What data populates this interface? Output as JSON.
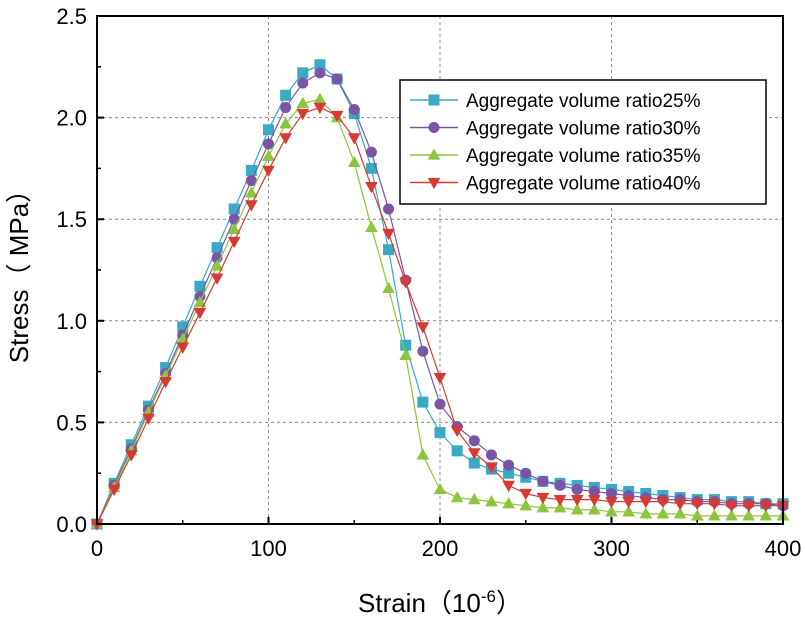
{
  "chart_data": {
    "type": "line",
    "xlabel": "Strain（",
    "xlabel_unit_base": "10",
    "xlabel_unit_exp": "-6",
    "xlabel_close": "）",
    "ylabel": "Stress（ MPa）",
    "xlim": [
      0,
      400
    ],
    "ylim": [
      0,
      2.5
    ],
    "x_ticks": [
      "0",
      "100",
      "200",
      "300",
      "400"
    ],
    "y_ticks": [
      "0.0",
      "0.5",
      "1.0",
      "1.5",
      "2.0",
      "2.5"
    ],
    "grid": true,
    "legend_position": "top-right",
    "x": [
      0,
      10,
      20,
      30,
      40,
      50,
      60,
      70,
      80,
      90,
      100,
      110,
      120,
      130,
      140,
      150,
      160,
      170,
      180,
      190,
      200,
      210,
      220,
      230,
      240,
      250,
      260,
      270,
      280,
      290,
      300,
      310,
      320,
      330,
      340,
      350,
      360,
      370,
      380,
      390,
      400
    ],
    "series": [
      {
        "name": "Aggregate volume ratio25%",
        "color": "#3aa9c6",
        "marker": "square",
        "values": [
          0,
          0.2,
          0.39,
          0.58,
          0.77,
          0.97,
          1.17,
          1.36,
          1.55,
          1.74,
          1.94,
          2.11,
          2.22,
          2.26,
          2.19,
          2.02,
          1.75,
          1.35,
          0.88,
          0.6,
          0.45,
          0.36,
          0.3,
          0.27,
          0.25,
          0.23,
          0.21,
          0.2,
          0.19,
          0.18,
          0.17,
          0.16,
          0.15,
          0.14,
          0.13,
          0.12,
          0.12,
          0.11,
          0.11,
          0.1,
          0.1
        ]
      },
      {
        "name": "Aggregate volume ratio30%",
        "color": "#7b55a5",
        "marker": "circle",
        "values": [
          0,
          0.19,
          0.37,
          0.56,
          0.74,
          0.93,
          1.12,
          1.31,
          1.5,
          1.69,
          1.87,
          2.05,
          2.17,
          2.22,
          2.19,
          2.04,
          1.83,
          1.55,
          1.2,
          0.85,
          0.59,
          0.48,
          0.41,
          0.34,
          0.29,
          0.25,
          0.21,
          0.19,
          0.17,
          0.16,
          0.15,
          0.14,
          0.13,
          0.12,
          0.12,
          0.11,
          0.11,
          0.1,
          0.1,
          0.1,
          0.09
        ]
      },
      {
        "name": "Aggregate volume ratio35%",
        "color": "#8cc63e",
        "marker": "triangle-up",
        "values": [
          0,
          0.18,
          0.36,
          0.55,
          0.73,
          0.91,
          1.09,
          1.27,
          1.45,
          1.63,
          1.81,
          1.97,
          2.07,
          2.09,
          2.0,
          1.78,
          1.46,
          1.16,
          0.83,
          0.34,
          0.17,
          0.13,
          0.12,
          0.11,
          0.1,
          0.09,
          0.08,
          0.08,
          0.07,
          0.07,
          0.06,
          0.06,
          0.05,
          0.05,
          0.05,
          0.04,
          0.04,
          0.04,
          0.04,
          0.04,
          0.04
        ]
      },
      {
        "name": "Aggregate volume ratio40%",
        "color": "#d63a32",
        "marker": "triangle-down",
        "values": [
          0,
          0.17,
          0.34,
          0.52,
          0.7,
          0.87,
          1.04,
          1.21,
          1.39,
          1.57,
          1.74,
          1.9,
          2.02,
          2.05,
          2.01,
          1.9,
          1.66,
          1.43,
          1.19,
          0.97,
          0.72,
          0.46,
          0.35,
          0.28,
          0.19,
          0.15,
          0.13,
          0.12,
          0.12,
          0.12,
          0.11,
          0.11,
          0.11,
          0.11,
          0.1,
          0.1,
          0.1,
          0.09,
          0.09,
          0.09,
          0.09
        ]
      }
    ]
  }
}
